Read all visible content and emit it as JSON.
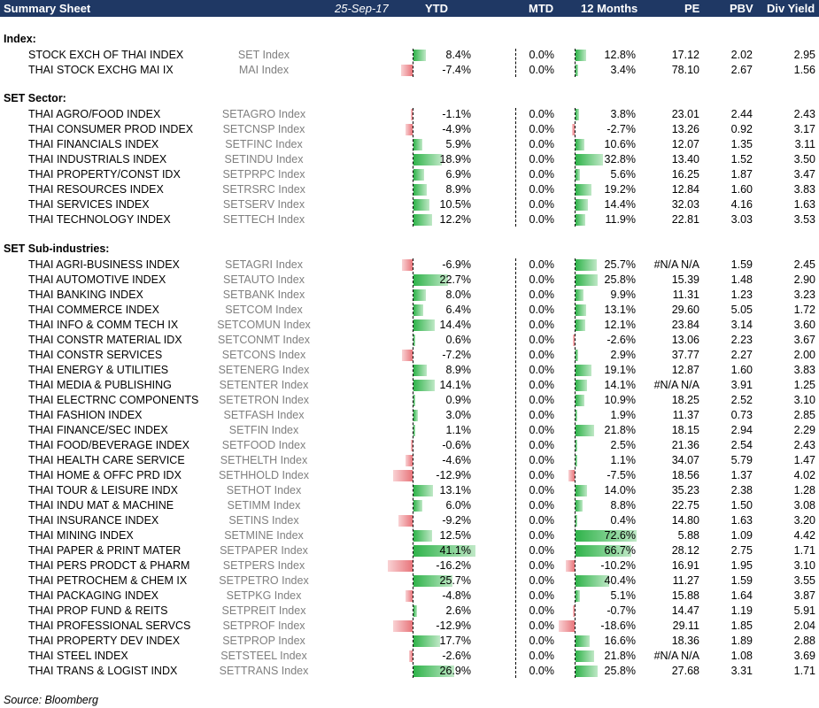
{
  "header": {
    "title": "Summary Sheet",
    "date": "25-Sep-17",
    "cols": [
      "YTD",
      "MTD",
      "12 Months",
      "PE",
      "PBV",
      "Div Yield"
    ]
  },
  "sections": [
    {
      "title": "Index:",
      "rows": [
        {
          "name": "STOCK EXCH OF THAI INDEX",
          "ticker": "SET Index",
          "ytd": "8.4%",
          "mtd": "0.0%",
          "m12": "12.8%",
          "pe": "17.12",
          "pbv": "2.02",
          "dy": "2.95",
          "ytd_v": 8.4,
          "m12_v": 12.8
        },
        {
          "name": "THAI STOCK EXCHG MAI IX",
          "ticker": "MAI Index",
          "ytd": "-7.4%",
          "mtd": "0.0%",
          "m12": "3.4%",
          "pe": "78.10",
          "pbv": "2.67",
          "dy": "1.56",
          "ytd_v": -7.4,
          "m12_v": 3.4
        }
      ]
    },
    {
      "title": "SET Sector:",
      "rows": [
        {
          "name": "THAI AGRO/FOOD INDEX",
          "ticker": "SETAGRO Index",
          "ytd": "-1.1%",
          "mtd": "0.0%",
          "m12": "3.8%",
          "pe": "23.01",
          "pbv": "2.44",
          "dy": "2.43",
          "ytd_v": -1.1,
          "m12_v": 3.8
        },
        {
          "name": "THAI CONSUMER PROD INDEX",
          "ticker": "SETCNSP Index",
          "ytd": "-4.9%",
          "mtd": "0.0%",
          "m12": "-2.7%",
          "pe": "13.26",
          "pbv": "0.92",
          "dy": "3.17",
          "ytd_v": -4.9,
          "m12_v": -2.7
        },
        {
          "name": "THAI FINANCIALS INDEX",
          "ticker": "SETFINC Index",
          "ytd": "5.9%",
          "mtd": "0.0%",
          "m12": "10.6%",
          "pe": "12.07",
          "pbv": "1.35",
          "dy": "3.11",
          "ytd_v": 5.9,
          "m12_v": 10.6
        },
        {
          "name": "THAI INDUSTRIALS INDEX",
          "ticker": "SETINDU Index",
          "ytd": "18.9%",
          "mtd": "0.0%",
          "m12": "32.8%",
          "pe": "13.40",
          "pbv": "1.52",
          "dy": "3.50",
          "ytd_v": 18.9,
          "m12_v": 32.8
        },
        {
          "name": "THAI PROPERTY/CONST IDX",
          "ticker": "SETPRPC Index",
          "ytd": "6.9%",
          "mtd": "0.0%",
          "m12": "5.6%",
          "pe": "16.25",
          "pbv": "1.87",
          "dy": "3.47",
          "ytd_v": 6.9,
          "m12_v": 5.6
        },
        {
          "name": "THAI RESOURCES INDEX",
          "ticker": "SETRSRC Index",
          "ytd": "8.9%",
          "mtd": "0.0%",
          "m12": "19.2%",
          "pe": "12.84",
          "pbv": "1.60",
          "dy": "3.83",
          "ytd_v": 8.9,
          "m12_v": 19.2
        },
        {
          "name": "THAI SERVICES INDEX",
          "ticker": "SETSERV Index",
          "ytd": "10.5%",
          "mtd": "0.0%",
          "m12": "14.4%",
          "pe": "32.03",
          "pbv": "4.16",
          "dy": "1.63",
          "ytd_v": 10.5,
          "m12_v": 14.4
        },
        {
          "name": "THAI TECHNOLOGY INDEX",
          "ticker": "SETTECH Index",
          "ytd": "12.2%",
          "mtd": "0.0%",
          "m12": "11.9%",
          "pe": "22.81",
          "pbv": "3.03",
          "dy": "3.53",
          "ytd_v": 12.2,
          "m12_v": 11.9
        }
      ]
    },
    {
      "title": "SET Sub-industries:",
      "rows": [
        {
          "name": "THAI AGRI-BUSINESS INDEX",
          "ticker": "SETAGRI Index",
          "ytd": "-6.9%",
          "mtd": "0.0%",
          "m12": "25.7%",
          "pe": "#N/A N/A",
          "pbv": "1.59",
          "dy": "2.45",
          "ytd_v": -6.9,
          "m12_v": 25.7
        },
        {
          "name": "THAI AUTOMOTIVE INDEX",
          "ticker": "SETAUTO Index",
          "ytd": "22.7%",
          "mtd": "0.0%",
          "m12": "25.8%",
          "pe": "15.39",
          "pbv": "1.48",
          "dy": "2.90",
          "ytd_v": 22.7,
          "m12_v": 25.8
        },
        {
          "name": "THAI BANKING INDEX",
          "ticker": "SETBANK Index",
          "ytd": "8.0%",
          "mtd": "0.0%",
          "m12": "9.9%",
          "pe": "11.31",
          "pbv": "1.23",
          "dy": "3.23",
          "ytd_v": 8.0,
          "m12_v": 9.9
        },
        {
          "name": "THAI COMMERCE INDEX",
          "ticker": "SETCOM Index",
          "ytd": "6.4%",
          "mtd": "0.0%",
          "m12": "13.1%",
          "pe": "29.60",
          "pbv": "5.05",
          "dy": "1.72",
          "ytd_v": 6.4,
          "m12_v": 13.1
        },
        {
          "name": "THAI INFO & COMM TECH IX",
          "ticker": "SETCOMUN Index",
          "ytd": "14.4%",
          "mtd": "0.0%",
          "m12": "12.1%",
          "pe": "23.84",
          "pbv": "3.14",
          "dy": "3.60",
          "ytd_v": 14.4,
          "m12_v": 12.1
        },
        {
          "name": "THAI CONSTR MATERIAL IDX",
          "ticker": "SETCONMT Index",
          "ytd": "0.6%",
          "mtd": "0.0%",
          "m12": "-2.6%",
          "pe": "13.06",
          "pbv": "2.23",
          "dy": "3.67",
          "ytd_v": 0.6,
          "m12_v": -2.6
        },
        {
          "name": "THAI CONSTR SERVICES",
          "ticker": "SETCONS Index",
          "ytd": "-7.2%",
          "mtd": "0.0%",
          "m12": "2.9%",
          "pe": "37.77",
          "pbv": "2.27",
          "dy": "2.00",
          "ytd_v": -7.2,
          "m12_v": 2.9
        },
        {
          "name": "THAI ENERGY & UTILITIES",
          "ticker": "SETENERG Index",
          "ytd": "8.9%",
          "mtd": "0.0%",
          "m12": "19.1%",
          "pe": "12.87",
          "pbv": "1.60",
          "dy": "3.83",
          "ytd_v": 8.9,
          "m12_v": 19.1
        },
        {
          "name": "THAI MEDIA & PUBLISHING",
          "ticker": "SETENTER Index",
          "ytd": "14.1%",
          "mtd": "0.0%",
          "m12": "14.1%",
          "pe": "#N/A N/A",
          "pbv": "3.91",
          "dy": "1.25",
          "ytd_v": 14.1,
          "m12_v": 14.1
        },
        {
          "name": "THAI ELECTRNC COMPONENTS",
          "ticker": "SETETRON Index",
          "ytd": "0.9%",
          "mtd": "0.0%",
          "m12": "10.9%",
          "pe": "18.25",
          "pbv": "2.52",
          "dy": "3.10",
          "ytd_v": 0.9,
          "m12_v": 10.9
        },
        {
          "name": "THAI FASHION INDEX",
          "ticker": "SETFASH Index",
          "ytd": "3.0%",
          "mtd": "0.0%",
          "m12": "1.9%",
          "pe": "11.37",
          "pbv": "0.73",
          "dy": "2.85",
          "ytd_v": 3.0,
          "m12_v": 1.9
        },
        {
          "name": "THAI FINANCE/SEC INDEX",
          "ticker": "SETFIN Index",
          "ytd": "1.1%",
          "mtd": "0.0%",
          "m12": "21.8%",
          "pe": "18.15",
          "pbv": "2.94",
          "dy": "2.29",
          "ytd_v": 1.1,
          "m12_v": 21.8
        },
        {
          "name": "THAI FOOD/BEVERAGE INDEX",
          "ticker": "SETFOOD Index",
          "ytd": "-0.6%",
          "mtd": "0.0%",
          "m12": "2.5%",
          "pe": "21.36",
          "pbv": "2.54",
          "dy": "2.43",
          "ytd_v": -0.6,
          "m12_v": 2.5
        },
        {
          "name": "THAI HEALTH CARE SERVICE",
          "ticker": "SETHELTH Index",
          "ytd": "-4.6%",
          "mtd": "0.0%",
          "m12": "1.1%",
          "pe": "34.07",
          "pbv": "5.79",
          "dy": "1.47",
          "ytd_v": -4.6,
          "m12_v": 1.1
        },
        {
          "name": "THAI HOME & OFFC PRD IDX",
          "ticker": "SETHHOLD Index",
          "ytd": "-12.9%",
          "mtd": "0.0%",
          "m12": "-7.5%",
          "pe": "18.56",
          "pbv": "1.37",
          "dy": "4.02",
          "ytd_v": -12.9,
          "m12_v": -7.5
        },
        {
          "name": "THAI TOUR & LEISURE INDX",
          "ticker": "SETHOT Index",
          "ytd": "13.1%",
          "mtd": "0.0%",
          "m12": "14.0%",
          "pe": "35.23",
          "pbv": "2.38",
          "dy": "1.28",
          "ytd_v": 13.1,
          "m12_v": 14.0
        },
        {
          "name": "THAI INDU MAT & MACHINE",
          "ticker": "SETIMM Index",
          "ytd": "6.0%",
          "mtd": "0.0%",
          "m12": "8.8%",
          "pe": "22.75",
          "pbv": "1.50",
          "dy": "3.08",
          "ytd_v": 6.0,
          "m12_v": 8.8
        },
        {
          "name": "THAI INSURANCE INDEX",
          "ticker": "SETINS Index",
          "ytd": "-9.2%",
          "mtd": "0.0%",
          "m12": "0.4%",
          "pe": "14.80",
          "pbv": "1.63",
          "dy": "3.20",
          "ytd_v": -9.2,
          "m12_v": 0.4
        },
        {
          "name": "THAI MINING INDEX",
          "ticker": "SETMINE Index",
          "ytd": "12.5%",
          "mtd": "0.0%",
          "m12": "72.6%",
          "pe": "5.88",
          "pbv": "1.09",
          "dy": "4.42",
          "ytd_v": 12.5,
          "m12_v": 72.6
        },
        {
          "name": "THAI PAPER & PRINT MATER",
          "ticker": "SETPAPER Index",
          "ytd": "41.1%",
          "mtd": "0.0%",
          "m12": "66.7%",
          "pe": "28.12",
          "pbv": "2.75",
          "dy": "1.71",
          "ytd_v": 41.1,
          "m12_v": 66.7
        },
        {
          "name": "THAI PERS PRODCT & PHARM",
          "ticker": "SETPERS Index",
          "ytd": "-16.2%",
          "mtd": "0.0%",
          "m12": "-10.2%",
          "pe": "16.91",
          "pbv": "1.95",
          "dy": "3.10",
          "ytd_v": -16.2,
          "m12_v": -10.2
        },
        {
          "name": "THAI PETROCHEM & CHEM IX",
          "ticker": "SETPETRO Index",
          "ytd": "25.7%",
          "mtd": "0.0%",
          "m12": "40.4%",
          "pe": "11.27",
          "pbv": "1.59",
          "dy": "3.55",
          "ytd_v": 25.7,
          "m12_v": 40.4
        },
        {
          "name": "THAI PACKAGING INDEX",
          "ticker": "SETPKG Index",
          "ytd": "-4.8%",
          "mtd": "0.0%",
          "m12": "5.1%",
          "pe": "15.88",
          "pbv": "1.64",
          "dy": "3.87",
          "ytd_v": -4.8,
          "m12_v": 5.1
        },
        {
          "name": "THAI PROP FUND & REITS",
          "ticker": "SETPREIT Index",
          "ytd": "2.6%",
          "mtd": "0.0%",
          "m12": "-0.7%",
          "pe": "14.47",
          "pbv": "1.19",
          "dy": "5.91",
          "ytd_v": 2.6,
          "m12_v": -0.7
        },
        {
          "name": "THAI PROFESSIONAL SERVCS",
          "ticker": "SETPROF Index",
          "ytd": "-12.9%",
          "mtd": "0.0%",
          "m12": "-18.6%",
          "pe": "29.11",
          "pbv": "1.85",
          "dy": "2.04",
          "ytd_v": -12.9,
          "m12_v": -18.6
        },
        {
          "name": "THAI PROPERTY DEV INDEX",
          "ticker": "SETPROP Index",
          "ytd": "17.7%",
          "mtd": "0.0%",
          "m12": "16.6%",
          "pe": "18.36",
          "pbv": "1.89",
          "dy": "2.88",
          "ytd_v": 17.7,
          "m12_v": 16.6
        },
        {
          "name": "THAI STEEL INDEX",
          "ticker": "SETSTEEL Index",
          "ytd": "-2.6%",
          "mtd": "0.0%",
          "m12": "21.8%",
          "pe": "#N/A N/A",
          "pbv": "1.08",
          "dy": "3.69",
          "ytd_v": -2.6,
          "m12_v": 21.8
        },
        {
          "name": "THAI TRANS & LOGIST INDX",
          "ticker": "SETTRANS Index",
          "ytd": "26.9%",
          "mtd": "0.0%",
          "m12": "25.8%",
          "pe": "27.68",
          "pbv": "3.31",
          "dy": "1.71",
          "ytd_v": 26.9,
          "m12_v": 25.8
        }
      ]
    }
  ],
  "source": "Source: Bloomberg"
}
